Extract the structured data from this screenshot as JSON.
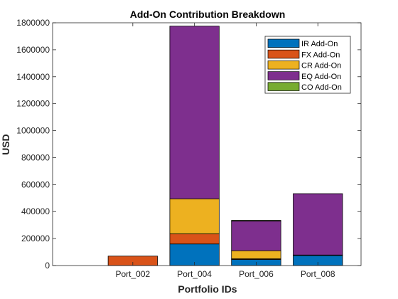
{
  "chart_data": {
    "type": "bar",
    "stacked": true,
    "title": "Add-On Contribution Breakdown",
    "xlabel": "Portfolio IDs",
    "ylabel": "USD",
    "categories": [
      "Port_002",
      "Port_004",
      "Port_006",
      "Port_008"
    ],
    "ylim": [
      0,
      1800000
    ],
    "yticks": [
      0,
      200000,
      400000,
      600000,
      800000,
      1000000,
      1200000,
      1400000,
      1600000,
      1800000
    ],
    "ytick_labels": [
      "0",
      "200000",
      "400000",
      "600000",
      "800000",
      "1000000",
      "1200000",
      "1400000",
      "1600000",
      "1800000"
    ],
    "grid": false,
    "legend_position": "top-right",
    "series": [
      {
        "name": "IR Add-On",
        "color": "#0072BD",
        "values": [
          0,
          160000,
          45000,
          75000
        ]
      },
      {
        "name": "FX Add-On",
        "color": "#D95319",
        "values": [
          70000,
          75000,
          5000,
          3000
        ]
      },
      {
        "name": "CR Add-On",
        "color": "#EDB120",
        "values": [
          0,
          260000,
          60000,
          0
        ]
      },
      {
        "name": "EQ Add-On",
        "color": "#7E2F8E",
        "values": [
          0,
          1280000,
          220000,
          455000
        ]
      },
      {
        "name": "CO Add-On",
        "color": "#77AC30",
        "values": [
          0,
          0,
          5000,
          0
        ]
      }
    ]
  }
}
